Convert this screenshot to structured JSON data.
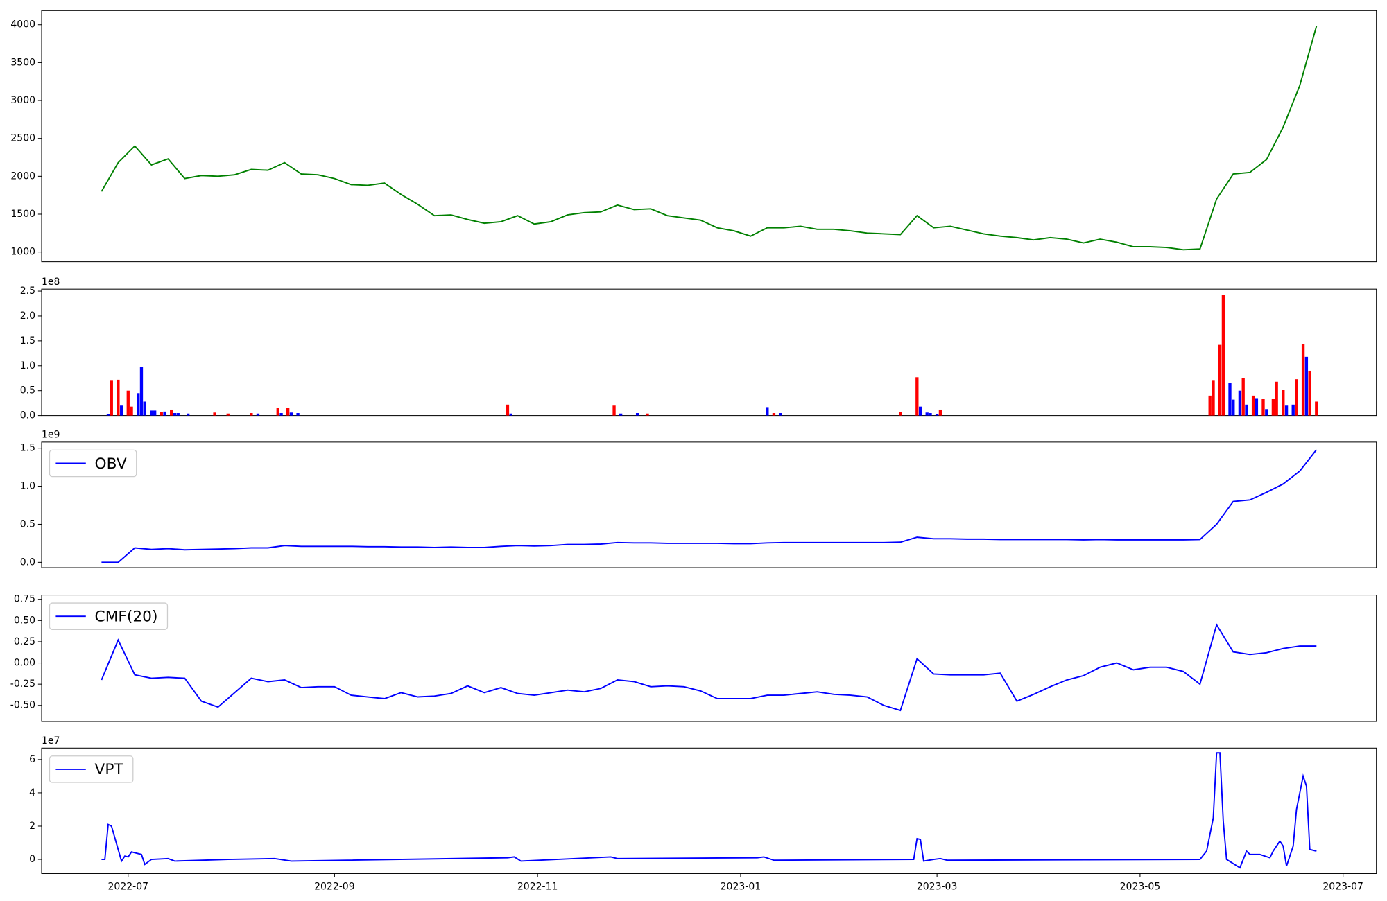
{
  "chart_data": [
    {
      "type": "line",
      "color": "#008000",
      "x": [
        19166,
        19171,
        19176,
        19181,
        19186,
        19191,
        19196,
        19201,
        19206,
        19211,
        19216,
        19221,
        19226,
        19231,
        19236,
        19241,
        19246,
        19251,
        19256,
        19261,
        19266,
        19271,
        19276,
        19281,
        19286,
        19291,
        19296,
        19301,
        19306,
        19311,
        19316,
        19321,
        19326,
        19331,
        19336,
        19341,
        19346,
        19351,
        19356,
        19361,
        19366,
        19371,
        19376,
        19381,
        19386,
        19391,
        19396,
        19401,
        19406,
        19411,
        19416,
        19421,
        19426,
        19431,
        19436,
        19441,
        19446,
        19451,
        19456,
        19461,
        19466,
        19471,
        19476,
        19481,
        19486,
        19491,
        19496,
        19501,
        19506,
        19511,
        19516,
        19521,
        19526,
        19531
      ],
      "values": [
        1800,
        2180,
        2400,
        2150,
        2230,
        1970,
        2010,
        2000,
        2020,
        2090,
        2080,
        2180,
        2030,
        2020,
        1970,
        1890,
        1880,
        1910,
        1760,
        1630,
        1480,
        1490,
        1430,
        1380,
        1400,
        1480,
        1370,
        1400,
        1490,
        1520,
        1530,
        1620,
        1560,
        1570,
        1480,
        1450,
        1420,
        1320,
        1280,
        1210,
        1320,
        1320,
        1340,
        1300,
        1300,
        1280,
        1250,
        1240,
        1230,
        1480,
        1320,
        1340,
        1290,
        1240,
        1210,
        1190,
        1160,
        1190,
        1170,
        1120,
        1170,
        1130,
        1070,
        1070,
        1060,
        1030,
        1040,
        1700,
        2030,
        2050,
        2220,
        2650,
        3200,
        3980
      ],
      "xlim": [
        19148,
        19549
      ],
      "ylim": [
        872,
        4187
      ],
      "yticks": [
        1000,
        1500,
        2000,
        2500,
        3000,
        3500,
        4000
      ]
    },
    {
      "type": "bar",
      "offset_text": "1e8",
      "x": [
        19168,
        19169,
        19171,
        19172,
        19174,
        19175,
        19177,
        19178,
        19179,
        19181,
        19182,
        19184,
        19185,
        19187,
        19188,
        19189,
        19192,
        19200,
        19204,
        19211,
        19213,
        19219,
        19220,
        19222,
        19223,
        19225,
        19288,
        19289,
        19320,
        19322,
        19327,
        19330,
        19366,
        19368,
        19370,
        19406,
        19411,
        19412,
        19414,
        19415,
        19417,
        19418,
        19499,
        19500,
        19502,
        19503,
        19505,
        19506,
        19508,
        19509,
        19510,
        19512,
        19513,
        19515,
        19516,
        19518,
        19519,
        19521,
        19522,
        19524,
        19525,
        19527,
        19528,
        19529,
        19531
      ],
      "values": [
        0.03,
        0.7,
        0.72,
        0.2,
        0.5,
        0.18,
        0.45,
        0.97,
        0.28,
        0.1,
        0.1,
        0.07,
        0.08,
        0.12,
        0.05,
        0.05,
        0.04,
        0.06,
        0.04,
        0.05,
        0.04,
        0.16,
        0.05,
        0.16,
        0.06,
        0.05,
        0.22,
        0.04,
        0.2,
        0.04,
        0.05,
        0.04,
        0.17,
        0.05,
        0.05,
        0.07,
        0.77,
        0.18,
        0.06,
        0.05,
        0.03,
        0.12,
        0.4,
        0.7,
        1.42,
        2.43,
        0.66,
        0.32,
        0.5,
        0.75,
        0.22,
        0.4,
        0.35,
        0.34,
        0.13,
        0.33,
        0.68,
        0.51,
        0.2,
        0.22,
        0.73,
        1.44,
        1.18,
        0.9,
        0.28
      ],
      "colors": [
        "#0000ff",
        "#ff0000",
        "#ff0000",
        "#0000ff",
        "#ff0000",
        "#ff0000",
        "#0000ff",
        "#0000ff",
        "#0000ff",
        "#0000ff",
        "#0000ff",
        "#ff0000",
        "#0000ff",
        "#ff0000",
        "#0000ff",
        "#0000ff",
        "#0000ff",
        "#ff0000",
        "#ff0000",
        "#ff0000",
        "#0000ff",
        "#ff0000",
        "#0000ff",
        "#ff0000",
        "#0000ff",
        "#0000ff",
        "#ff0000",
        "#0000ff",
        "#ff0000",
        "#0000ff",
        "#0000ff",
        "#ff0000",
        "#0000ff",
        "#ff0000",
        "#0000ff",
        "#ff0000",
        "#ff0000",
        "#0000ff",
        "#0000ff",
        "#0000ff",
        "#0000ff",
        "#ff0000",
        "#ff0000",
        "#ff0000",
        "#ff0000",
        "#ff0000",
        "#0000ff",
        "#0000ff",
        "#0000ff",
        "#ff0000",
        "#0000ff",
        "#ff0000",
        "#0000ff",
        "#ff0000",
        "#0000ff",
        "#ff0000",
        "#ff0000",
        "#ff0000",
        "#0000ff",
        "#0000ff",
        "#ff0000",
        "#ff0000",
        "#0000ff",
        "#ff0000",
        "#ff0000"
      ],
      "xlim": [
        19148,
        19549
      ],
      "ylim": [
        0,
        2.54
      ],
      "yticks": [
        {
          "value": 0,
          "label": "0.0"
        },
        0.5,
        {
          "value": 1,
          "label": "1.0"
        },
        1.5,
        {
          "value": 2,
          "label": "2.0"
        },
        2.5
      ]
    },
    {
      "type": "line",
      "offset_text": "1e9",
      "legend": "upper left",
      "x": [
        19166,
        19171,
        19176,
        19181,
        19186,
        19191,
        19196,
        19201,
        19206,
        19211,
        19216,
        19221,
        19226,
        19231,
        19236,
        19241,
        19246,
        19251,
        19256,
        19261,
        19266,
        19271,
        19276,
        19281,
        19286,
        19291,
        19296,
        19301,
        19306,
        19311,
        19316,
        19321,
        19326,
        19331,
        19336,
        19341,
        19346,
        19351,
        19356,
        19361,
        19366,
        19371,
        19376,
        19381,
        19386,
        19391,
        19396,
        19401,
        19406,
        19411,
        19416,
        19421,
        19426,
        19431,
        19436,
        19441,
        19446,
        19451,
        19456,
        19461,
        19466,
        19471,
        19476,
        19481,
        19486,
        19491,
        19496,
        19501,
        19506,
        19511,
        19516,
        19521,
        19526,
        19531
      ],
      "series": [
        {
          "name": "OBV",
          "color": "#0000ff",
          "values": [
            0,
            0,
            0.19,
            0.17,
            0.18,
            0.165,
            0.17,
            0.175,
            0.18,
            0.19,
            0.19,
            0.22,
            0.21,
            0.21,
            0.21,
            0.21,
            0.205,
            0.205,
            0.2,
            0.2,
            0.195,
            0.2,
            0.195,
            0.195,
            0.21,
            0.22,
            0.215,
            0.22,
            0.235,
            0.235,
            0.24,
            0.26,
            0.255,
            0.255,
            0.25,
            0.25,
            0.25,
            0.25,
            0.245,
            0.245,
            0.255,
            0.26,
            0.26,
            0.26,
            0.26,
            0.26,
            0.26,
            0.26,
            0.265,
            0.33,
            0.31,
            0.31,
            0.305,
            0.305,
            0.3,
            0.3,
            0.3,
            0.3,
            0.3,
            0.295,
            0.3,
            0.295,
            0.295,
            0.295,
            0.295,
            0.295,
            0.3,
            0.5,
            0.8,
            0.82,
            0.92,
            1.03,
            1.2,
            1.48
          ]
        }
      ],
      "xlim": [
        19148,
        19549
      ],
      "ylim": [
        -0.07,
        1.58
      ],
      "yticks": [
        {
          "value": 0,
          "label": "0.0"
        },
        0.5,
        {
          "value": 1,
          "label": "1.0"
        },
        1.5
      ]
    },
    {
      "type": "line",
      "legend": "upper left",
      "x": [
        19166,
        19171,
        19176,
        19181,
        19186,
        19191,
        19196,
        19201,
        19206,
        19211,
        19216,
        19221,
        19226,
        19231,
        19236,
        19241,
        19246,
        19251,
        19256,
        19261,
        19266,
        19271,
        19276,
        19281,
        19286,
        19291,
        19296,
        19301,
        19306,
        19311,
        19316,
        19321,
        19326,
        19331,
        19336,
        19341,
        19346,
        19351,
        19356,
        19361,
        19366,
        19371,
        19376,
        19381,
        19386,
        19391,
        19396,
        19401,
        19406,
        19411,
        19416,
        19421,
        19426,
        19431,
        19436,
        19441,
        19446,
        19451,
        19456,
        19461,
        19466,
        19471,
        19476,
        19481,
        19486,
        19491,
        19496,
        19501,
        19506,
        19511,
        19516,
        19521,
        19526,
        19531
      ],
      "series": [
        {
          "name": "CMF(20)",
          "color": "#0000ff",
          "values": [
            -0.2,
            0.27,
            -0.14,
            -0.18,
            -0.17,
            -0.18,
            -0.45,
            -0.52,
            -0.35,
            -0.18,
            -0.22,
            -0.2,
            -0.29,
            -0.28,
            -0.28,
            -0.38,
            -0.4,
            -0.42,
            -0.35,
            -0.4,
            -0.39,
            -0.36,
            -0.27,
            -0.35,
            -0.29,
            -0.36,
            -0.38,
            -0.35,
            -0.32,
            -0.34,
            -0.3,
            -0.2,
            -0.22,
            -0.28,
            -0.27,
            -0.28,
            -0.33,
            -0.42,
            -0.42,
            -0.42,
            -0.38,
            -0.38,
            -0.36,
            -0.34,
            -0.37,
            -0.38,
            -0.4,
            -0.5,
            -0.56,
            0.05,
            -0.13,
            -0.14,
            -0.14,
            -0.14,
            -0.12,
            -0.45,
            -0.37,
            -0.28,
            -0.2,
            -0.15,
            -0.05,
            0,
            -0.08,
            -0.05,
            -0.05,
            -0.1,
            -0.25,
            0.45,
            0.13,
            0.1,
            0.12,
            0.17,
            0.2,
            0.2
          ]
        }
      ],
      "xlim": [
        19148,
        19549
      ],
      "ylim": [
        -0.69,
        0.8
      ],
      "yticks": [
        {
          "value": -0.5,
          "label": "-0.50"
        },
        -0.25,
        {
          "value": 0,
          "label": "0.00"
        },
        0.25,
        {
          "value": 0.5,
          "label": "0.50"
        },
        0.75
      ]
    },
    {
      "type": "line",
      "offset_text": "1e7",
      "legend": "upper left",
      "x": [
        19166,
        19167,
        19168,
        19169,
        19172,
        19173,
        19174,
        19175,
        19178,
        19179,
        19181,
        19186,
        19188,
        19204,
        19218,
        19223,
        19288,
        19290,
        19292,
        19319,
        19321,
        19363,
        19365,
        19368,
        19410,
        19411,
        19412,
        19413,
        19416,
        19418,
        19420,
        19496,
        19498,
        19500,
        19501,
        19502,
        19503,
        19504,
        19508,
        19510,
        19511,
        19514,
        19517,
        19518,
        19520,
        19521,
        19522,
        19524,
        19525,
        19527,
        19528,
        19529,
        19531
      ],
      "series": [
        {
          "name": "VPT",
          "color": "#0000ff",
          "values": [
            0,
            0,
            2.1,
            2.0,
            -0.1,
            0.2,
            0.15,
            0.45,
            0.3,
            -0.3,
            0,
            0.05,
            -0.1,
            0,
            0.05,
            -0.1,
            0.1,
            0.15,
            -0.1,
            0.15,
            0.05,
            0.1,
            0.15,
            -0.05,
            0,
            1.25,
            1.2,
            -0.1,
            0,
            0.05,
            -0.05,
            0,
            0.5,
            2.5,
            6.4,
            6.4,
            2.3,
            0,
            -0.5,
            0.5,
            0.3,
            0.3,
            0.1,
            0.5,
            1.1,
            0.8,
            -0.4,
            0.8,
            3,
            5,
            4.4,
            0.6,
            0.5
          ]
        }
      ],
      "xlim": [
        19148,
        19549
      ],
      "ylim": [
        -0.85,
        6.69
      ],
      "yticks": [
        0,
        2,
        4,
        6
      ],
      "xticks": [
        {
          "value": 19174,
          "label": "2022-07"
        },
        {
          "value": 19236,
          "label": "2022-09"
        },
        {
          "value": 19297,
          "label": "2022-11"
        },
        {
          "value": 19358,
          "label": "2023-01"
        },
        {
          "value": 19417,
          "label": "2023-03"
        },
        {
          "value": 19478,
          "label": "2023-05"
        },
        {
          "value": 19539,
          "label": "2023-07"
        }
      ]
    }
  ]
}
